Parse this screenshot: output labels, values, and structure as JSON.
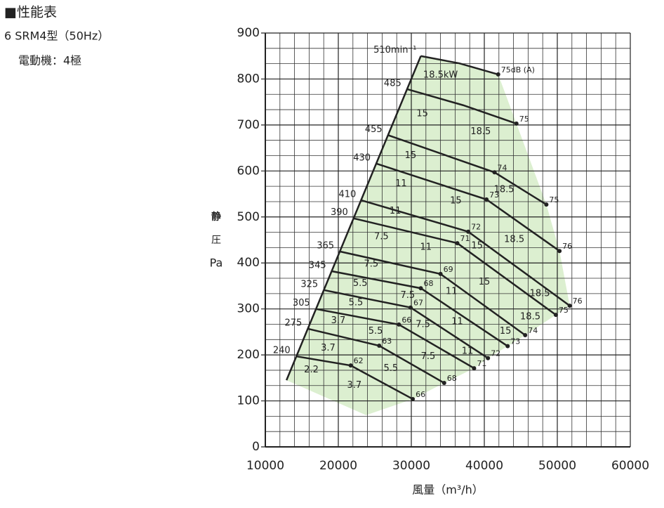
{
  "header": {
    "title": "■性能表",
    "model": "6 SRM4型（50Hz）",
    "motor": "電動機：4極"
  },
  "chart_data": {
    "type": "line",
    "ylabel": [
      "静",
      "圧",
      "Pa"
    ],
    "xlabel": "風量（m³/h）",
    "xlim": [
      10000,
      60000
    ],
    "xticks": [
      10000,
      20000,
      30000,
      40000,
      50000,
      60000
    ],
    "ylim": [
      0,
      900
    ],
    "yticks": [
      0,
      100,
      200,
      300,
      400,
      500,
      600,
      700,
      800,
      900
    ],
    "grid": true,
    "color": "#222222",
    "fill": "#dcefd0",
    "series": [
      {
        "name": "510min⁻¹",
        "x": [
          31300,
          36600,
          41900
        ],
        "y": [
          850,
          834,
          810
        ],
        "db": [
          null,
          null,
          "75dB (A)"
        ]
      },
      {
        "name": "485",
        "x": [
          29400,
          37100,
          44400
        ],
        "y": [
          778,
          743,
          703
        ],
        "db": [
          null,
          null,
          "75"
        ]
      },
      {
        "name": "455",
        "x": [
          26800,
          41400,
          48500
        ],
        "y": [
          678,
          597,
          527
        ],
        "db": [
          null,
          "74",
          "75"
        ]
      },
      {
        "name": "430",
        "x": [
          25200,
          40300,
          50300
        ],
        "y": [
          616,
          538,
          426
        ],
        "db": [
          null,
          "73",
          "76"
        ]
      },
      {
        "name": "410",
        "x": [
          23200,
          37800,
          51700
        ],
        "y": [
          536,
          468,
          307
        ],
        "db": [
          null,
          "72",
          "76"
        ]
      },
      {
        "name": "390",
        "x": [
          22100,
          36300,
          49800
        ],
        "y": [
          497,
          443,
          287
        ],
        "db": [
          null,
          "71",
          "75"
        ]
      },
      {
        "name": "365",
        "x": [
          20200,
          34000,
          45600
        ],
        "y": [
          425,
          376,
          243
        ],
        "db": [
          null,
          "69",
          "74"
        ]
      },
      {
        "name": "345",
        "x": [
          19100,
          31300,
          43200
        ],
        "y": [
          382,
          345,
          219
        ],
        "db": [
          null,
          "68",
          "73"
        ]
      },
      {
        "name": "325",
        "x": [
          18000,
          29900,
          40500
        ],
        "y": [
          341,
          303,
          193
        ],
        "db": [
          null,
          "67",
          "72"
        ]
      },
      {
        "name": "305",
        "x": [
          16900,
          28300,
          38600
        ],
        "y": [
          300,
          266,
          171
        ],
        "db": [
          null,
          "66",
          "71"
        ]
      },
      {
        "name": "275",
        "x": [
          15800,
          25600,
          34500
        ],
        "y": [
          257,
          220,
          139
        ],
        "db": [
          null,
          "63",
          "68"
        ]
      },
      {
        "name": "240",
        "x": [
          14200,
          21700,
          30200
        ],
        "y": [
          197,
          177,
          104
        ],
        "db": [
          null,
          "62",
          "66"
        ]
      }
    ],
    "region": {
      "x": [
        23800,
        12900
      ],
      "y": [
        69,
        145
      ]
    },
    "kw_labels": [
      {
        "text": "18.5kW",
        "x": 34000,
        "y": 808
      },
      {
        "text": "15",
        "x": 31500,
        "y": 724
      },
      {
        "text": "18.5",
        "x": 39500,
        "y": 685
      },
      {
        "text": "15",
        "x": 29900,
        "y": 633
      },
      {
        "text": "18.5",
        "x": 42700,
        "y": 559
      },
      {
        "text": "11",
        "x": 28600,
        "y": 572
      },
      {
        "text": "15",
        "x": 36100,
        "y": 535
      },
      {
        "text": "11",
        "x": 27800,
        "y": 513
      },
      {
        "text": "7.5",
        "x": 25900,
        "y": 457
      },
      {
        "text": "11",
        "x": 32000,
        "y": 434
      },
      {
        "text": "15",
        "x": 39000,
        "y": 437
      },
      {
        "text": "18.5",
        "x": 44100,
        "y": 451
      },
      {
        "text": "7.5",
        "x": 24500,
        "y": 397
      },
      {
        "text": "5.5",
        "x": 23000,
        "y": 355
      },
      {
        "text": "7.5",
        "x": 29500,
        "y": 329
      },
      {
        "text": "11",
        "x": 35500,
        "y": 338
      },
      {
        "text": "15",
        "x": 40000,
        "y": 358
      },
      {
        "text": "18.5",
        "x": 47600,
        "y": 333
      },
      {
        "text": "5.5",
        "x": 22400,
        "y": 313
      },
      {
        "text": "3.7",
        "x": 20000,
        "y": 274
      },
      {
        "text": "5.5",
        "x": 25100,
        "y": 251
      },
      {
        "text": "7.5",
        "x": 31600,
        "y": 266
      },
      {
        "text": "11",
        "x": 36300,
        "y": 272
      },
      {
        "text": "18.5",
        "x": 46300,
        "y": 283
      },
      {
        "text": "15",
        "x": 42900,
        "y": 251
      },
      {
        "text": "3.7",
        "x": 18600,
        "y": 215
      },
      {
        "text": "7.5",
        "x": 32300,
        "y": 196
      },
      {
        "text": "11",
        "x": 37700,
        "y": 208
      },
      {
        "text": "2.2",
        "x": 16300,
        "y": 167
      },
      {
        "text": "5.5",
        "x": 27200,
        "y": 170
      },
      {
        "text": "3.7",
        "x": 22200,
        "y": 134
      }
    ]
  }
}
